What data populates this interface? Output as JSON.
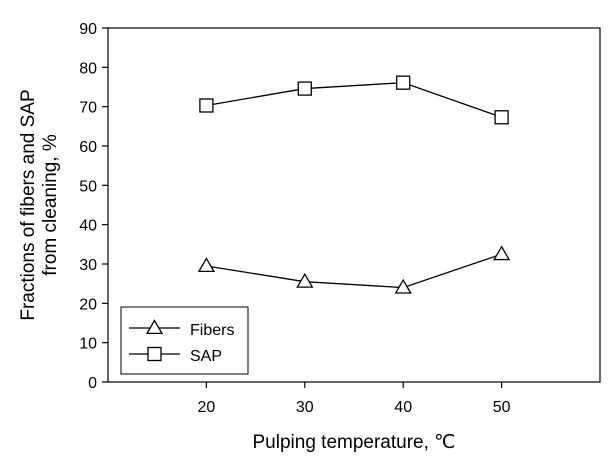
{
  "chart_data": {
    "type": "line",
    "title": "",
    "xlabel": "Pulping temperature, ℃",
    "ylabel_line1": "Fractions of fibers and SAP",
    "ylabel_line2": "from cleaning, %",
    "x": [
      20,
      30,
      40,
      50
    ],
    "xticks": [
      "20",
      "30",
      "40",
      "50"
    ],
    "xlim": [
      10,
      60
    ],
    "ylim": [
      0,
      90
    ],
    "yticks": [
      "0",
      "10",
      "20",
      "30",
      "40",
      "50",
      "60",
      "70",
      "80",
      "90"
    ],
    "grid": false,
    "legend_position": "bottom-left",
    "series": [
      {
        "name": "Fibers",
        "marker": "triangle",
        "values": [
          29.5,
          25.5,
          24.0,
          32.5
        ]
      },
      {
        "name": "SAP",
        "marker": "square",
        "values": [
          70.3,
          74.6,
          76.1,
          67.3
        ]
      }
    ]
  }
}
